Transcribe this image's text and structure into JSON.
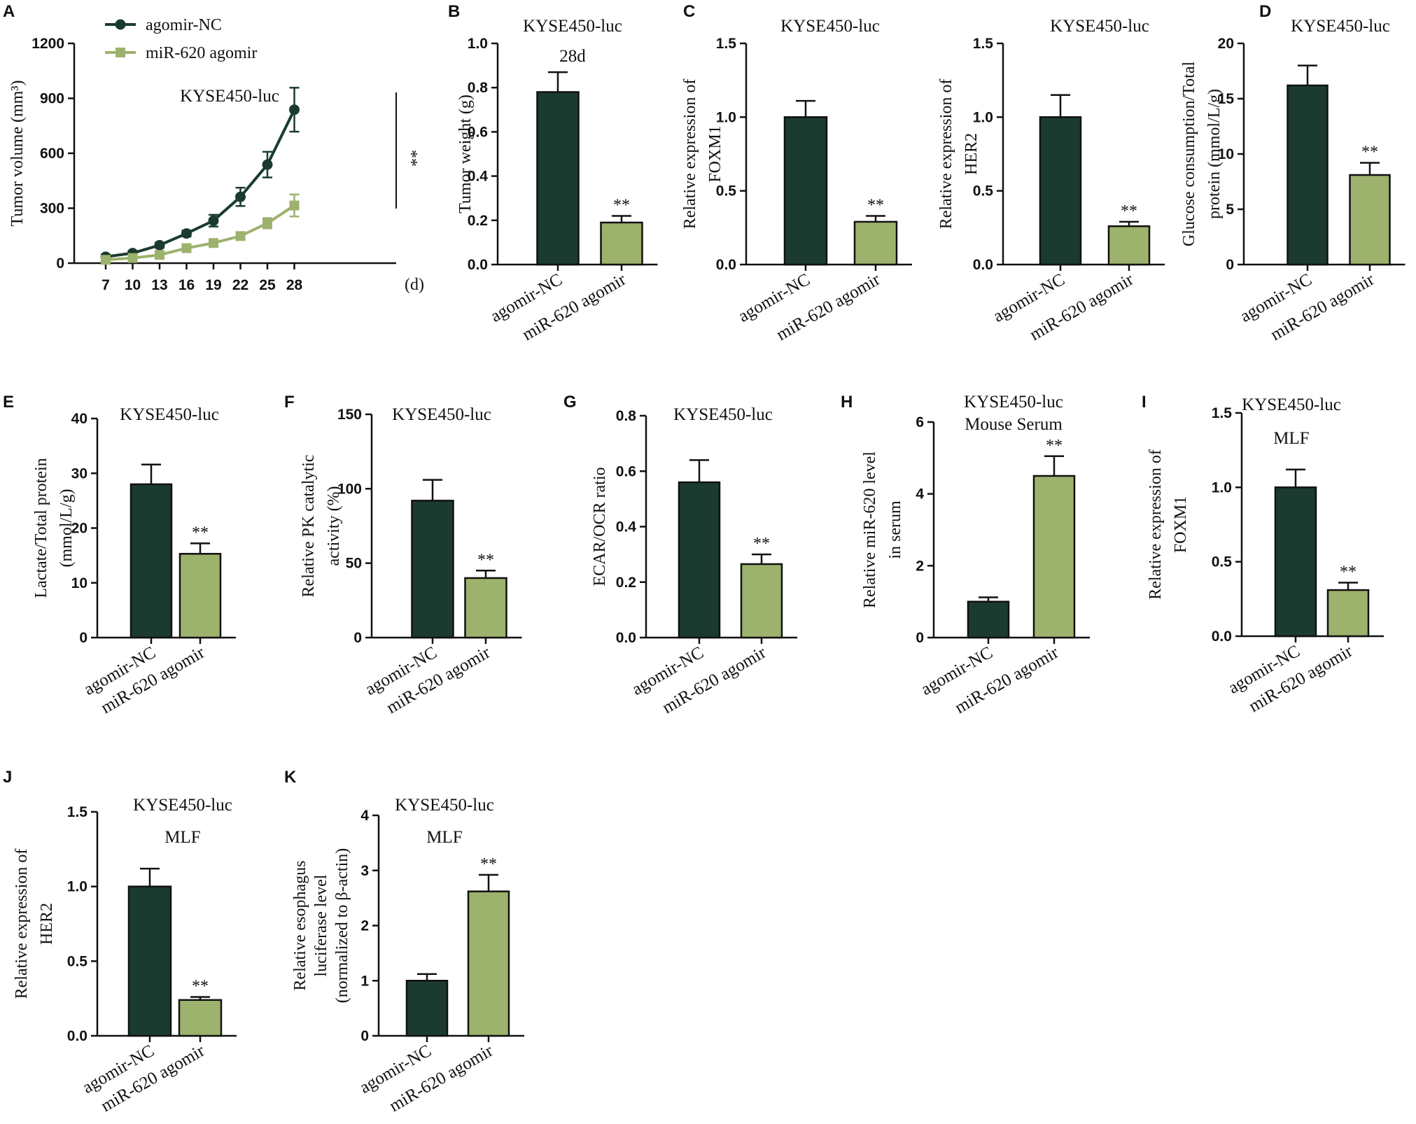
{
  "colors": {
    "nc": "#1b3b31",
    "mir": "#9db26c",
    "axis": "#111111"
  },
  "legend": {
    "series_a": "agomir-NC",
    "series_b": "miR-620 agomir"
  },
  "chart_data": [
    {
      "id": "A",
      "type": "line",
      "panel_label": "A",
      "title": "KYSE450-luc",
      "ylabel": "Tumor volume (mm³)",
      "xunit": "(d)",
      "x": [
        7,
        10,
        13,
        16,
        19,
        22,
        25,
        28
      ],
      "xticks": [
        "7",
        "10",
        "13",
        "16",
        "19",
        "22",
        "25",
        "28"
      ],
      "ylim": [
        0,
        1200
      ],
      "yticks": [
        "0",
        "300",
        "600",
        "900",
        "1200"
      ],
      "series": [
        {
          "name": "agomir-NC",
          "values": [
            35,
            55,
            98,
            162,
            232,
            362,
            538,
            838
          ],
          "errors": [
            12,
            12,
            14,
            16,
            32,
            50,
            70,
            120
          ]
        },
        {
          "name": "miR-620 agomir",
          "values": [
            18,
            28,
            45,
            82,
            110,
            148,
            218,
            315
          ],
          "errors": [
            6,
            8,
            10,
            12,
            14,
            14,
            28,
            60
          ]
        }
      ],
      "significance": "**"
    },
    {
      "id": "B",
      "type": "bar",
      "panel_label": "B",
      "title": "KYSE450-luc",
      "subtitle": "28d",
      "ylabel": [
        "Tumor weight (g)"
      ],
      "ylim": [
        0,
        1.0
      ],
      "yticks": [
        "0.0",
        "0.2",
        "0.4",
        "0.6",
        "0.8",
        "1.0"
      ],
      "categories": [
        "agomir-NC",
        "miR-620 agomir"
      ],
      "values": [
        0.78,
        0.19
      ],
      "errors": [
        0.09,
        0.03
      ],
      "significance": [
        "",
        "**"
      ]
    },
    {
      "id": "C1",
      "type": "bar",
      "panel_label": "C",
      "title": "KYSE450-luc",
      "ylabel": [
        "Relative expression of",
        "FOXM1"
      ],
      "ylim": [
        0,
        1.5
      ],
      "yticks": [
        "0.0",
        "0.5",
        "1.0",
        "1.5"
      ],
      "categories": [
        "agomir-NC",
        "miR-620 agomir"
      ],
      "values": [
        1.0,
        0.29
      ],
      "errors": [
        0.11,
        0.04
      ],
      "significance": [
        "",
        "**"
      ]
    },
    {
      "id": "C2",
      "type": "bar",
      "panel_label": "",
      "title": "KYSE450-luc",
      "ylabel": [
        "Relative expression of",
        "HER2"
      ],
      "ylim": [
        0,
        1.5
      ],
      "yticks": [
        "0.0",
        "0.5",
        "1.0",
        "1.5"
      ],
      "categories": [
        "agomir-NC",
        "miR-620 agomir"
      ],
      "values": [
        1.0,
        0.26
      ],
      "errors": [
        0.15,
        0.03
      ],
      "significance": [
        "",
        "**"
      ]
    },
    {
      "id": "D",
      "type": "bar",
      "panel_label": "D",
      "title": "KYSE450-luc",
      "ylabel": [
        "Glucose consumption/Total",
        "protein (mmol/L/g)"
      ],
      "ylim": [
        0,
        20
      ],
      "yticks": [
        "0",
        "5",
        "10",
        "15",
        "20"
      ],
      "categories": [
        "agomir-NC",
        "miR-620 agomir"
      ],
      "values": [
        16.2,
        8.1
      ],
      "errors": [
        1.8,
        1.1
      ],
      "significance": [
        "",
        "**"
      ]
    },
    {
      "id": "E",
      "type": "bar",
      "panel_label": "E",
      "title": "KYSE450-luc",
      "ylabel": [
        "Lactate/Total protein",
        "(mmol/L/g)"
      ],
      "ylim": [
        0,
        40
      ],
      "yticks": [
        "0",
        "10",
        "20",
        "30",
        "40"
      ],
      "categories": [
        "agomir-NC",
        "miR-620 agomir"
      ],
      "values": [
        28.0,
        15.3
      ],
      "errors": [
        3.6,
        1.9
      ],
      "significance": [
        "",
        "**"
      ]
    },
    {
      "id": "F",
      "type": "bar",
      "panel_label": "F",
      "title": "KYSE450-luc",
      "ylabel": [
        "Relative PK catalytic",
        "activity (%)"
      ],
      "ylim": [
        0,
        150
      ],
      "yticks": [
        "0",
        "50",
        "100",
        "150"
      ],
      "categories": [
        "agomir-NC",
        "miR-620 agomir"
      ],
      "values": [
        92,
        40
      ],
      "errors": [
        14,
        5
      ],
      "significance": [
        "",
        "**"
      ]
    },
    {
      "id": "G",
      "type": "bar",
      "panel_label": "G",
      "title": "KYSE450-luc",
      "ylabel": [
        "ECAR/OCR ratio"
      ],
      "ylim": [
        0,
        0.8
      ],
      "yticks": [
        "0.0",
        "0.2",
        "0.4",
        "0.6",
        "0.8"
      ],
      "categories": [
        "agomir-NC",
        "miR-620 agomir"
      ],
      "values": [
        0.56,
        0.265
      ],
      "errors": [
        0.08,
        0.035
      ],
      "significance": [
        "",
        "**"
      ]
    },
    {
      "id": "H",
      "type": "bar",
      "panel_label": "H",
      "title": "KYSE450-luc",
      "subtitle": "Mouse Serum",
      "ylabel": [
        "Relative miR-620 level",
        "in serum"
      ],
      "ylim": [
        0,
        6
      ],
      "yticks": [
        "0",
        "2",
        "4",
        "6"
      ],
      "categories": [
        "agomir-NC",
        "miR-620 agomir"
      ],
      "values": [
        1.0,
        4.5
      ],
      "errors": [
        0.12,
        0.55
      ],
      "significance": [
        "",
        "**"
      ]
    },
    {
      "id": "I",
      "type": "bar",
      "panel_label": "I",
      "title": "KYSE450-luc",
      "subtitle": "MLF",
      "ylabel": [
        "Relative expression of",
        "FOXM1"
      ],
      "ylim": [
        0,
        1.5
      ],
      "yticks": [
        "0.0",
        "0.5",
        "1.0",
        "1.5"
      ],
      "categories": [
        "agomir-NC",
        "miR-620 agomir"
      ],
      "values": [
        1.0,
        0.31
      ],
      "errors": [
        0.12,
        0.05
      ],
      "significance": [
        "",
        "**"
      ]
    },
    {
      "id": "J",
      "type": "bar",
      "panel_label": "J",
      "title": "KYSE450-luc",
      "subtitle": "MLF",
      "ylabel": [
        "Relative expression of",
        "HER2"
      ],
      "ylim": [
        0,
        1.5
      ],
      "yticks": [
        "0.0",
        "0.5",
        "1.0",
        "1.5"
      ],
      "categories": [
        "agomir-NC",
        "miR-620 agomir"
      ],
      "values": [
        1.0,
        0.24
      ],
      "errors": [
        0.12,
        0.02
      ],
      "significance": [
        "",
        "**"
      ]
    },
    {
      "id": "K",
      "type": "bar",
      "panel_label": "K",
      "title": "KYSE450-luc",
      "subtitle": "MLF",
      "ylabel": [
        "Relative esophagus",
        "luciferase level",
        "(normalized to β-actin)"
      ],
      "ylim": [
        0,
        4
      ],
      "yticks": [
        "0",
        "1",
        "2",
        "3",
        "4"
      ],
      "categories": [
        "agomir-NC",
        "miR-620 agomir"
      ],
      "values": [
        1.0,
        2.62
      ],
      "errors": [
        0.12,
        0.3
      ],
      "significance": [
        "",
        "**"
      ]
    }
  ]
}
